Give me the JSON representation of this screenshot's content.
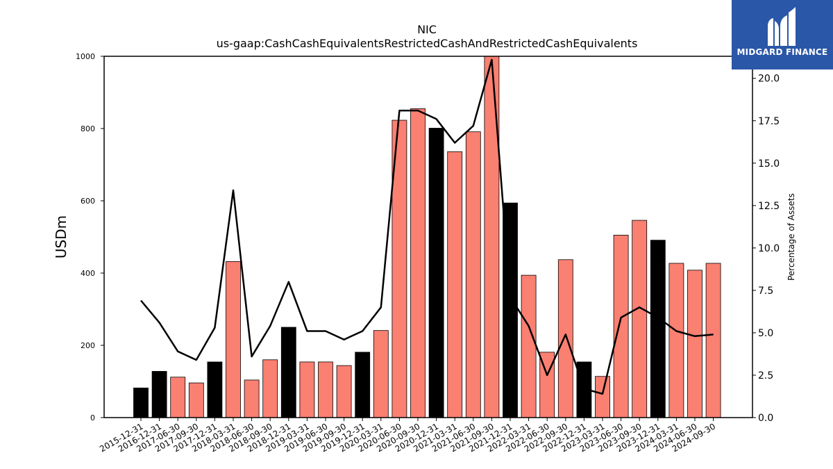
{
  "logo": {
    "text": "MIDGARD FINANCE"
  },
  "chart_data": {
    "type": "bar",
    "title": "NIC",
    "subtitle": "us-gaap:CashCashEquivalentsRestrictedCashAndRestrictedCashEquivalents",
    "ylabel": "USDm",
    "y2label": "Percentage of Assets",
    "ylim": [
      0,
      1000
    ],
    "y2lim": [
      0,
      21.3
    ],
    "yticks": [
      0,
      200,
      400,
      600,
      800,
      1000
    ],
    "y2ticks": [
      "0.0",
      "2.5",
      "5.0",
      "7.5",
      "10.0",
      "12.5",
      "15.0",
      "17.5",
      "20.0"
    ],
    "colors": {
      "annual": "#000000",
      "quarterly": "#fa8072",
      "line": "#000000",
      "logo_bg": "#2b57a8"
    },
    "categories": [
      "2015-12-31",
      "2016-12-31",
      "2017-06-30",
      "2017-09-30",
      "2017-12-31",
      "2018-03-31",
      "2018-06-30",
      "2018-09-30",
      "2018-12-31",
      "2019-03-31",
      "2019-06-30",
      "2019-09-30",
      "2019-12-31",
      "2020-03-31",
      "2020-06-30",
      "2020-09-30",
      "2020-12-31",
      "2021-03-31",
      "2021-06-30",
      "2021-09-30",
      "2021-12-31",
      "2022-03-31",
      "2022-06-30",
      "2022-09-30",
      "2022-12-31",
      "2023-03-31",
      "2023-06-30",
      "2023-09-30",
      "2023-12-31",
      "2024-03-31",
      "2024-06-30",
      "2024-09-30"
    ],
    "series": [
      {
        "type": "bar",
        "values": [
          82,
          128,
          112,
          96,
          154,
          432,
          104,
          160,
          250,
          154,
          154,
          144,
          181,
          241,
          823,
          855,
          801,
          736,
          791,
          1020,
          594,
          394,
          181,
          437,
          154,
          114,
          505,
          546,
          491,
          427,
          408,
          427
        ],
        "annual": [
          true,
          true,
          false,
          false,
          true,
          false,
          false,
          false,
          true,
          false,
          false,
          false,
          true,
          false,
          false,
          false,
          true,
          false,
          false,
          false,
          true,
          false,
          false,
          false,
          true,
          false,
          false,
          false,
          true,
          false,
          false,
          false
        ]
      },
      {
        "type": "line",
        "axis": "right",
        "values": [
          6.9,
          5.6,
          3.9,
          3.4,
          5.3,
          13.4,
          3.6,
          5.4,
          8.0,
          5.1,
          5.1,
          4.6,
          5.1,
          6.5,
          18.1,
          18.1,
          17.6,
          16.2,
          17.2,
          21.1,
          7.1,
          5.4,
          2.5,
          4.9,
          1.7,
          1.4,
          5.9,
          6.5,
          5.9,
          5.1,
          4.8,
          4.9
        ]
      }
    ],
    "grid": false
  }
}
